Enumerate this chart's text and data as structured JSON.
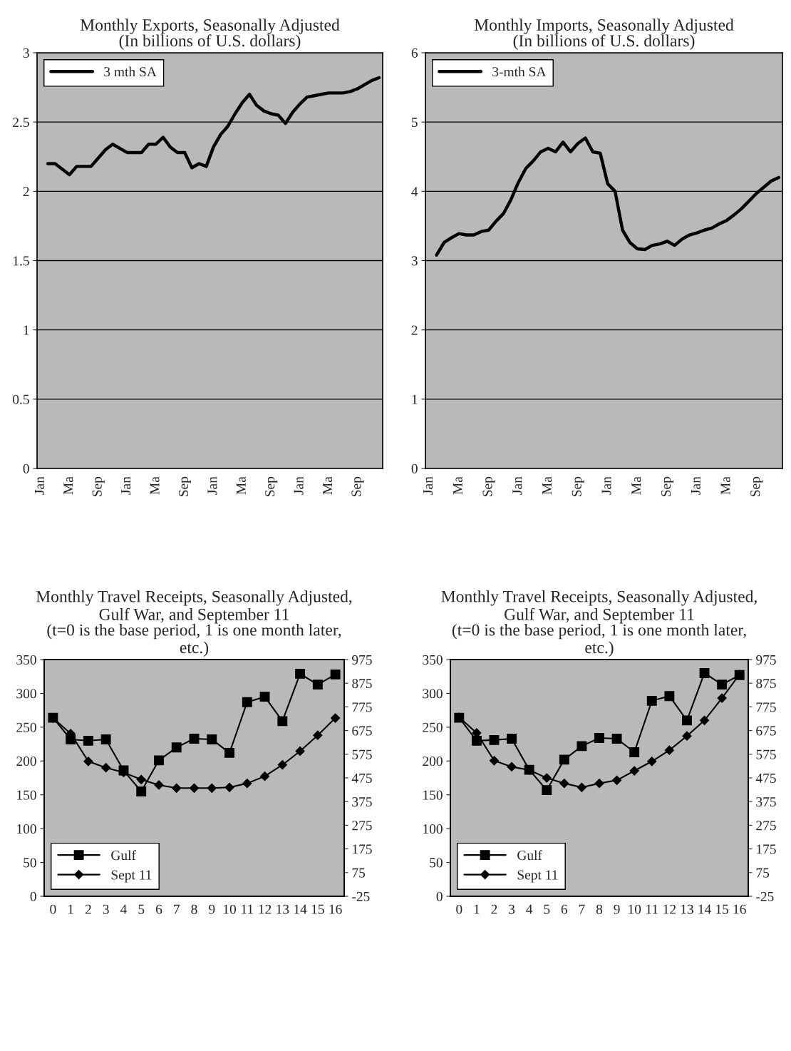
{
  "chart_data": [
    {
      "type": "line",
      "title": "Monthly Exports, Seasonally Adjusted",
      "subtitle": "(In billions of U.S. dollars)",
      "categories": [
        "Jan",
        null,
        null,
        null,
        "Ma",
        null,
        null,
        null,
        "Sep",
        null,
        null,
        null,
        "Jan",
        null,
        null,
        null,
        "Ma",
        null,
        null,
        null,
        "Sep",
        null,
        null,
        null,
        "Jan",
        null,
        null,
        null,
        "Ma",
        null,
        null,
        null,
        "Sep",
        null,
        null,
        null,
        "Jan",
        null,
        null,
        null,
        "Ma",
        null,
        null,
        null,
        "Sep",
        null,
        null,
        null
      ],
      "series": [
        {
          "name": "3 mth SA",
          "color": "#000000",
          "values": [
            null,
            2.2,
            2.2,
            2.16,
            2.12,
            2.18,
            2.18,
            2.18,
            2.24,
            2.3,
            2.34,
            2.31,
            2.28,
            2.28,
            2.28,
            2.34,
            2.34,
            2.39,
            2.32,
            2.28,
            2.28,
            2.17,
            2.2,
            2.18,
            2.32,
            2.41,
            2.47,
            2.56,
            2.64,
            2.7,
            2.62,
            2.58,
            2.56,
            2.55,
            2.49,
            2.57,
            2.63,
            2.68,
            2.69,
            2.7,
            2.71,
            2.71,
            2.71,
            2.72,
            2.74,
            2.77,
            2.8,
            2.82
          ]
        }
      ],
      "ylim": [
        0,
        3
      ],
      "yticks": [
        0,
        0.5,
        1,
        1.5,
        2,
        2.5,
        3
      ],
      "grid": "y",
      "legend": "top left"
    },
    {
      "type": "line",
      "title": "Monthly Imports, Seasonally Adjusted",
      "subtitle": "(In billions of U.S. dollars)",
      "categories": [
        "Jan",
        null,
        null,
        null,
        "Ma",
        null,
        null,
        null,
        "Sep",
        null,
        null,
        null,
        "Jan",
        null,
        null,
        null,
        "Ma",
        null,
        null,
        null,
        "Sep",
        null,
        null,
        null,
        "Jan",
        null,
        null,
        null,
        "Ma",
        null,
        null,
        null,
        "Sep",
        null,
        null,
        null,
        "Jan",
        null,
        null,
        null,
        "Ma",
        null,
        null,
        null,
        "Sep",
        null,
        null,
        null
      ],
      "series": [
        {
          "name": "3-mth SA",
          "color": "#000000",
          "values": [
            null,
            3.08,
            3.26,
            3.33,
            3.39,
            3.37,
            3.37,
            3.42,
            3.44,
            3.57,
            3.68,
            3.88,
            4.13,
            4.33,
            4.44,
            4.57,
            4.62,
            4.57,
            4.71,
            4.57,
            4.69,
            4.77,
            4.57,
            4.55,
            4.11,
            4.0,
            3.44,
            3.26,
            3.17,
            3.16,
            3.22,
            3.24,
            3.28,
            3.22,
            3.31,
            3.37,
            3.4,
            3.44,
            3.47,
            3.53,
            3.58,
            3.66,
            3.75,
            3.86,
            3.97,
            4.06,
            4.15,
            4.2
          ]
        }
      ],
      "ylim": [
        0,
        6
      ],
      "yticks": [
        0,
        1,
        2,
        3,
        4,
        5,
        6
      ],
      "grid": "y",
      "legend": "top left"
    },
    {
      "type": "line",
      "title": "Monthly Travel Receipts, Seasonally Adjusted, Gulf War, and September 11",
      "subtitle": "(t=0 is the base period, 1 is one month later, etc.)",
      "categories": [
        "0",
        "1",
        "2",
        "3",
        "4",
        "5",
        "6",
        "7",
        "8",
        "9",
        "10",
        "11",
        "12",
        "13",
        "14",
        "15",
        "16"
      ],
      "series": [
        {
          "name": "Gulf",
          "color": "#000000",
          "marker": "square",
          "values": [
            264,
            232,
            230,
            232,
            186,
            155,
            201,
            220,
            233,
            232,
            212,
            287,
            295,
            259,
            329,
            313,
            328
          ]
        },
        {
          "name": "Sept 11",
          "color": "#000000",
          "marker": "diamond",
          "axis": "y2",
          "values": [
            728,
            662,
            545,
            518,
            498,
            468,
            445,
            432,
            432,
            432,
            435,
            452,
            482,
            530,
            588,
            655,
            728
          ]
        }
      ],
      "ylim": [
        0,
        350
      ],
      "yticks": [
        0,
        50,
        100,
        150,
        200,
        250,
        300,
        350
      ],
      "y2lim": [
        -25,
        975
      ],
      "y2ticks": [
        -25,
        75,
        175,
        275,
        375,
        475,
        575,
        675,
        775,
        875,
        975
      ],
      "legend": "bottom left"
    },
    {
      "type": "line",
      "title": "Monthly Travel Receipts, Seasonally Adjusted, Gulf War, and September 11",
      "subtitle": "(t=0 is the base period, 1 is one month later, etc.)",
      "categories": [
        "0",
        "1",
        "2",
        "3",
        "4",
        "5",
        "6",
        "7",
        "8",
        "9",
        "10",
        "11",
        "12",
        "13",
        "14",
        "15",
        "16"
      ],
      "series": [
        {
          "name": "Gulf",
          "color": "#000000",
          "marker": "square",
          "values": [
            264,
            230,
            231,
            233,
            187,
            157,
            202,
            222,
            234,
            233,
            213,
            289,
            296,
            260,
            330,
            313,
            327
          ]
        },
        {
          "name": "Sept 11",
          "color": "#000000",
          "marker": "diamond",
          "axis": "y2",
          "values": [
            731,
            665,
            548,
            522,
            508,
            475,
            452,
            435,
            452,
            465,
            505,
            545,
            592,
            652,
            718,
            812,
            912
          ]
        }
      ],
      "ylim": [
        0,
        350
      ],
      "yticks": [
        0,
        50,
        100,
        150,
        200,
        250,
        300,
        350
      ],
      "y2lim": [
        -25,
        975
      ],
      "y2ticks": [
        -25,
        75,
        175,
        275,
        375,
        475,
        575,
        675,
        775,
        875,
        975
      ],
      "legend": "bottom left"
    }
  ]
}
